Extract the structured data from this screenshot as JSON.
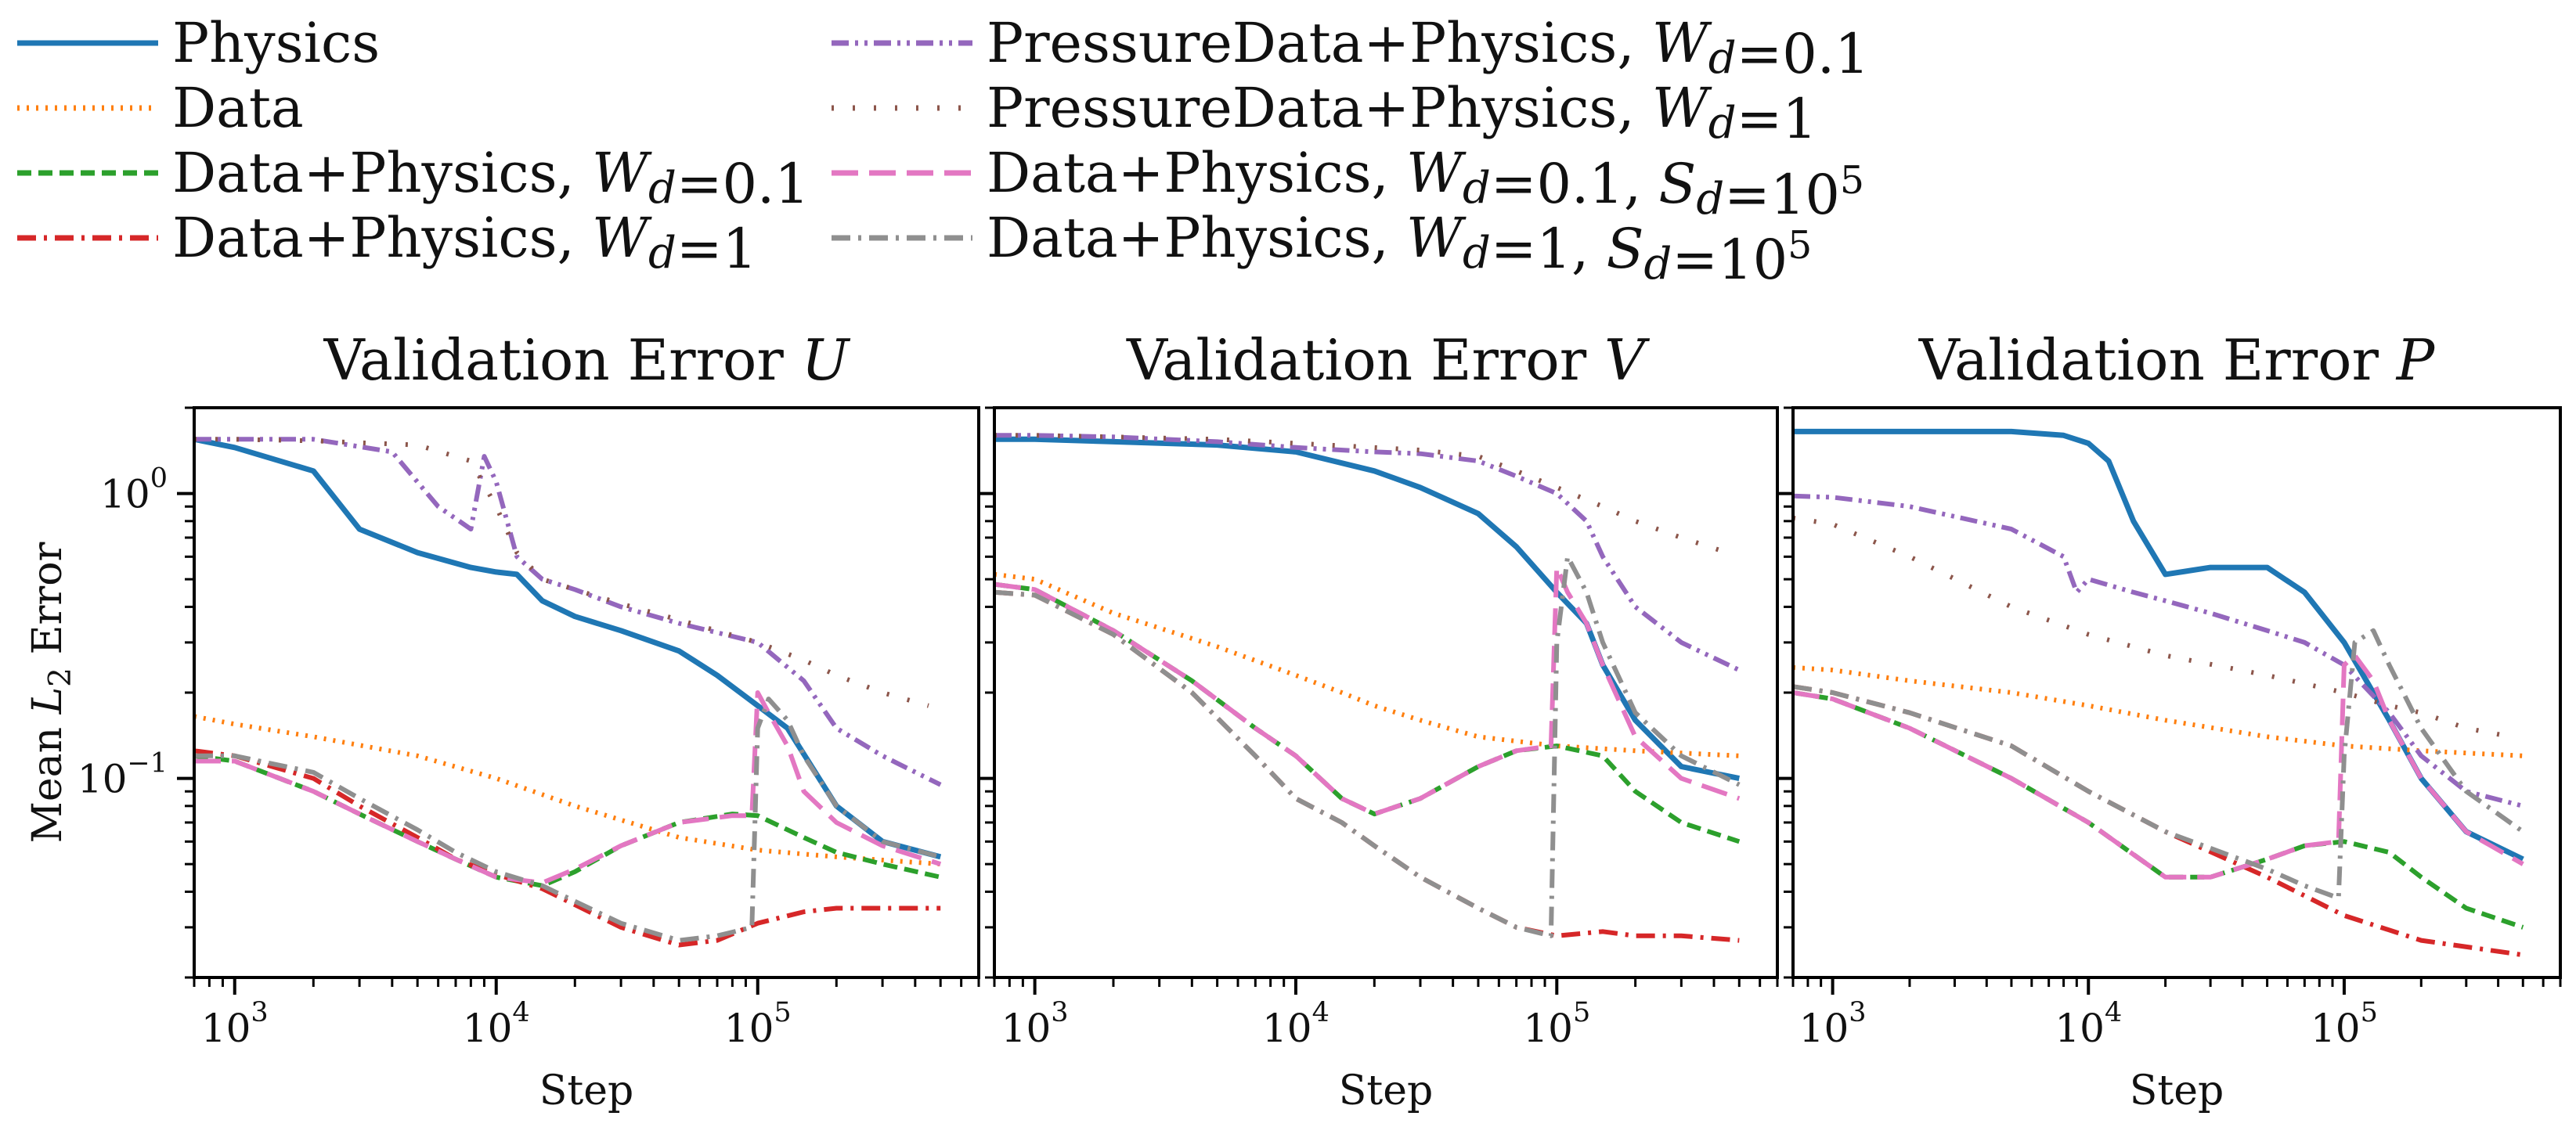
{
  "legend": [
    {
      "key": "physics",
      "label": "Physics",
      "color": "#1f77b4",
      "style": "solid"
    },
    {
      "key": "data",
      "label": "Data",
      "color": "#ff7f0e",
      "style": "dotted"
    },
    {
      "key": "dp01",
      "label": "Data+Physics, Wd=0.1",
      "color": "#2ca02c",
      "style": "dashed"
    },
    {
      "key": "dp1",
      "label": "Data+Physics, Wd=1",
      "color": "#d62728",
      "style": "dashdot"
    },
    {
      "key": "pdp01",
      "label": "PressureData+Physics, Wd=0.1",
      "color": "#9467bd",
      "style": "dashdotdot"
    },
    {
      "key": "pdp1",
      "label": "PressureData+Physics, Wd=1",
      "color": "#8c564b",
      "style": "sparse-dotted"
    },
    {
      "key": "dps01",
      "label": "Data+Physics, Wd=0.1, Sd=10^5",
      "color": "#e377c2",
      "style": "longdash"
    },
    {
      "key": "dps1",
      "label": "Data+Physics, Wd=1, Sd=10^5",
      "color": "#8f8f8f",
      "style": "dashdot"
    }
  ],
  "chart_data": [
    {
      "type": "line",
      "title": "Validation Error U",
      "xlabel": "Step",
      "ylabel": "Mean L2 Error",
      "xscale": "log",
      "yscale": "log",
      "xlim": [
        700,
        700000
      ],
      "ylim": [
        0.02,
        2.0
      ],
      "xticks": [
        "10^3",
        "10^4",
        "10^5"
      ],
      "yticks": [
        "10^0",
        "10^-1"
      ],
      "series": [
        {
          "key": "physics",
          "x": [
            700,
            1000,
            2000,
            3000,
            5000,
            8000,
            10000,
            12000,
            15000,
            20000,
            30000,
            50000,
            70000,
            100000,
            130000,
            200000,
            300000,
            500000
          ],
          "y": [
            1.55,
            1.45,
            1.2,
            0.75,
            0.62,
            0.55,
            0.53,
            0.52,
            0.42,
            0.37,
            0.33,
            0.28,
            0.23,
            0.18,
            0.15,
            0.08,
            0.06,
            0.053
          ]
        },
        {
          "key": "data",
          "x": [
            700,
            1000,
            2000,
            5000,
            10000,
            20000,
            50000,
            100000,
            200000,
            500000
          ],
          "y": [
            0.165,
            0.155,
            0.14,
            0.12,
            0.1,
            0.08,
            0.062,
            0.056,
            0.053,
            0.05
          ]
        },
        {
          "key": "dp01",
          "x": [
            700,
            1000,
            2000,
            3000,
            5000,
            7000,
            10000,
            15000,
            20000,
            30000,
            50000,
            80000,
            100000,
            150000,
            200000,
            300000,
            500000
          ],
          "y": [
            0.12,
            0.115,
            0.09,
            0.075,
            0.06,
            0.052,
            0.045,
            0.042,
            0.047,
            0.058,
            0.07,
            0.075,
            0.074,
            0.062,
            0.055,
            0.05,
            0.045
          ]
        },
        {
          "key": "dp1",
          "x": [
            700,
            1000,
            2000,
            3000,
            5000,
            7000,
            10000,
            15000,
            20000,
            30000,
            50000,
            70000,
            100000,
            150000,
            200000,
            300000,
            500000
          ],
          "y": [
            0.125,
            0.12,
            0.1,
            0.08,
            0.062,
            0.052,
            0.046,
            0.041,
            0.036,
            0.03,
            0.026,
            0.027,
            0.031,
            0.034,
            0.035,
            0.035,
            0.035
          ]
        },
        {
          "key": "pdp01",
          "x": [
            700,
            1000,
            2000,
            4000,
            6000,
            8000,
            9000,
            10000,
            12000,
            15000,
            20000,
            30000,
            50000,
            100000,
            150000,
            200000,
            300000,
            500000
          ],
          "y": [
            1.55,
            1.55,
            1.55,
            1.4,
            0.9,
            0.75,
            1.35,
            1.1,
            0.6,
            0.5,
            0.46,
            0.4,
            0.35,
            0.3,
            0.22,
            0.15,
            0.12,
            0.095
          ]
        },
        {
          "key": "pdp1",
          "x": [
            700,
            1000,
            2000,
            5000,
            8000,
            10000,
            12000,
            15000,
            20000,
            30000,
            50000,
            100000,
            150000,
            200000,
            300000,
            450000
          ],
          "y": [
            1.55,
            1.55,
            1.53,
            1.48,
            1.3,
            0.9,
            0.62,
            0.5,
            0.46,
            0.41,
            0.36,
            0.3,
            0.26,
            0.23,
            0.2,
            0.18
          ]
        },
        {
          "key": "dps01",
          "x": [
            700,
            1000,
            2000,
            3000,
            5000,
            7000,
            10000,
            15000,
            20000,
            30000,
            50000,
            80000,
            95000,
            100000,
            110000,
            130000,
            150000,
            200000,
            300000,
            500000
          ],
          "y": [
            0.115,
            0.115,
            0.09,
            0.075,
            0.06,
            0.052,
            0.045,
            0.043,
            0.048,
            0.058,
            0.07,
            0.074,
            0.074,
            0.2,
            0.17,
            0.13,
            0.09,
            0.07,
            0.058,
            0.05
          ]
        },
        {
          "key": "dps1",
          "x": [
            700,
            1000,
            2000,
            3000,
            5000,
            7000,
            10000,
            15000,
            20000,
            30000,
            50000,
            70000,
            95000,
            100000,
            110000,
            130000,
            150000,
            200000,
            300000,
            500000
          ],
          "y": [
            0.12,
            0.12,
            0.105,
            0.085,
            0.066,
            0.055,
            0.047,
            0.042,
            0.037,
            0.031,
            0.027,
            0.028,
            0.03,
            0.15,
            0.19,
            0.16,
            0.12,
            0.08,
            0.06,
            0.053
          ]
        }
      ]
    },
    {
      "type": "line",
      "title": "Validation Error V",
      "xlabel": "Step",
      "ylabel": "",
      "xscale": "log",
      "yscale": "log",
      "xlim": [
        700,
        700000
      ],
      "ylim": [
        0.02,
        2.0
      ],
      "xticks": [
        "10^3",
        "10^4",
        "10^5"
      ],
      "yticks": [],
      "series": [
        {
          "key": "physics",
          "x": [
            700,
            1000,
            2000,
            5000,
            10000,
            20000,
            30000,
            50000,
            70000,
            100000,
            130000,
            150000,
            200000,
            300000,
            500000
          ],
          "y": [
            1.55,
            1.55,
            1.52,
            1.48,
            1.4,
            1.2,
            1.05,
            0.85,
            0.65,
            0.45,
            0.35,
            0.25,
            0.16,
            0.11,
            0.1
          ]
        },
        {
          "key": "data",
          "x": [
            700,
            1000,
            2000,
            5000,
            10000,
            15000,
            20000,
            30000,
            50000,
            100000,
            200000,
            500000
          ],
          "y": [
            0.52,
            0.5,
            0.38,
            0.29,
            0.23,
            0.2,
            0.18,
            0.16,
            0.14,
            0.13,
            0.125,
            0.12
          ]
        },
        {
          "key": "dp01",
          "x": [
            700,
            1000,
            2000,
            4000,
            7000,
            10000,
            15000,
            20000,
            30000,
            50000,
            70000,
            100000,
            150000,
            200000,
            300000,
            500000
          ],
          "y": [
            0.48,
            0.46,
            0.33,
            0.22,
            0.15,
            0.12,
            0.085,
            0.075,
            0.085,
            0.11,
            0.125,
            0.13,
            0.12,
            0.09,
            0.07,
            0.06
          ]
        },
        {
          "key": "dp1",
          "x": [
            700,
            1000,
            2000,
            4000,
            7000,
            10000,
            15000,
            20000,
            30000,
            50000,
            70000,
            100000,
            150000,
            200000,
            300000,
            500000
          ],
          "y": [
            0.45,
            0.44,
            0.32,
            0.2,
            0.12,
            0.085,
            0.07,
            0.058,
            0.045,
            0.035,
            0.03,
            0.028,
            0.029,
            0.028,
            0.028,
            0.027
          ]
        },
        {
          "key": "pdp01",
          "x": [
            700,
            1000,
            2000,
            5000,
            10000,
            20000,
            30000,
            50000,
            70000,
            100000,
            130000,
            150000,
            200000,
            300000,
            500000
          ],
          "y": [
            1.6,
            1.6,
            1.58,
            1.52,
            1.45,
            1.4,
            1.38,
            1.3,
            1.15,
            1.0,
            0.8,
            0.6,
            0.4,
            0.3,
            0.24
          ]
        },
        {
          "key": "pdp1",
          "x": [
            700,
            1000,
            2000,
            5000,
            10000,
            20000,
            30000,
            50000,
            70000,
            100000,
            150000,
            200000,
            300000,
            450000
          ],
          "y": [
            1.6,
            1.6,
            1.58,
            1.55,
            1.5,
            1.45,
            1.42,
            1.35,
            1.2,
            1.05,
            0.9,
            0.8,
            0.7,
            0.62
          ]
        },
        {
          "key": "dps01",
          "x": [
            700,
            1000,
            2000,
            4000,
            7000,
            10000,
            15000,
            20000,
            30000,
            50000,
            70000,
            95000,
            100000,
            110000,
            130000,
            150000,
            200000,
            300000,
            500000
          ],
          "y": [
            0.48,
            0.46,
            0.33,
            0.22,
            0.15,
            0.12,
            0.085,
            0.075,
            0.085,
            0.11,
            0.125,
            0.13,
            0.55,
            0.45,
            0.35,
            0.25,
            0.14,
            0.1,
            0.085
          ]
        },
        {
          "key": "dps1",
          "x": [
            700,
            1000,
            2000,
            4000,
            7000,
            10000,
            15000,
            20000,
            30000,
            50000,
            70000,
            95000,
            100000,
            110000,
            130000,
            150000,
            200000,
            300000,
            500000
          ],
          "y": [
            0.45,
            0.44,
            0.32,
            0.2,
            0.12,
            0.085,
            0.07,
            0.058,
            0.045,
            0.035,
            0.03,
            0.028,
            0.3,
            0.6,
            0.45,
            0.3,
            0.17,
            0.12,
            0.095
          ]
        }
      ]
    },
    {
      "type": "line",
      "title": "Validation Error P",
      "xlabel": "Step",
      "ylabel": "",
      "xscale": "log",
      "yscale": "log",
      "xlim": [
        700,
        700000
      ],
      "ylim": [
        0.02,
        2.0
      ],
      "xticks": [
        "10^3",
        "10^4",
        "10^5"
      ],
      "yticks": [],
      "series": [
        {
          "key": "physics",
          "x": [
            700,
            1000,
            2000,
            5000,
            8000,
            10000,
            12000,
            15000,
            20000,
            30000,
            50000,
            70000,
            100000,
            150000,
            200000,
            300000,
            500000
          ],
          "y": [
            1.65,
            1.65,
            1.65,
            1.65,
            1.6,
            1.5,
            1.3,
            0.8,
            0.52,
            0.55,
            0.55,
            0.45,
            0.3,
            0.16,
            0.1,
            0.065,
            0.052
          ]
        },
        {
          "key": "data",
          "x": [
            700,
            1000,
            2000,
            5000,
            10000,
            20000,
            50000,
            100000,
            200000,
            500000
          ],
          "y": [
            0.245,
            0.24,
            0.22,
            0.2,
            0.18,
            0.16,
            0.14,
            0.13,
            0.125,
            0.12
          ]
        },
        {
          "key": "dp01",
          "x": [
            700,
            1000,
            2000,
            5000,
            10000,
            20000,
            30000,
            50000,
            70000,
            100000,
            150000,
            200000,
            300000,
            500000
          ],
          "y": [
            0.2,
            0.19,
            0.15,
            0.1,
            0.07,
            0.045,
            0.045,
            0.052,
            0.058,
            0.06,
            0.055,
            0.045,
            0.035,
            0.03
          ]
        },
        {
          "key": "dp1",
          "x": [
            700,
            1000,
            2000,
            5000,
            10000,
            20000,
            50000,
            100000,
            200000,
            500000
          ],
          "y": [
            0.21,
            0.2,
            0.17,
            0.13,
            0.09,
            0.065,
            0.045,
            0.033,
            0.027,
            0.024
          ]
        },
        {
          "key": "pdp01",
          "x": [
            700,
            1000,
            2000,
            5000,
            8000,
            9000,
            10000,
            15000,
            20000,
            30000,
            50000,
            70000,
            100000,
            150000,
            200000,
            300000,
            500000
          ],
          "y": [
            0.98,
            0.97,
            0.9,
            0.75,
            0.6,
            0.45,
            0.5,
            0.45,
            0.42,
            0.38,
            0.33,
            0.3,
            0.25,
            0.17,
            0.12,
            0.09,
            0.08
          ]
        },
        {
          "key": "pdp1",
          "x": [
            700,
            1000,
            2000,
            5000,
            10000,
            20000,
            50000,
            100000,
            150000,
            200000,
            300000,
            450000
          ],
          "y": [
            0.82,
            0.78,
            0.6,
            0.4,
            0.32,
            0.27,
            0.23,
            0.2,
            0.18,
            0.17,
            0.15,
            0.14
          ]
        },
        {
          "key": "dps01",
          "x": [
            700,
            1000,
            2000,
            5000,
            10000,
            20000,
            30000,
            50000,
            70000,
            95000,
            100000,
            110000,
            130000,
            150000,
            200000,
            300000,
            500000
          ],
          "y": [
            0.2,
            0.19,
            0.15,
            0.1,
            0.07,
            0.045,
            0.045,
            0.052,
            0.058,
            0.06,
            0.25,
            0.27,
            0.22,
            0.16,
            0.1,
            0.065,
            0.05
          ]
        },
        {
          "key": "dps1",
          "x": [
            700,
            1000,
            2000,
            5000,
            10000,
            20000,
            50000,
            70000,
            95000,
            100000,
            110000,
            130000,
            150000,
            200000,
            300000,
            500000
          ],
          "y": [
            0.21,
            0.2,
            0.17,
            0.13,
            0.09,
            0.065,
            0.048,
            0.042,
            0.038,
            0.12,
            0.3,
            0.33,
            0.25,
            0.15,
            0.09,
            0.065
          ]
        }
      ]
    }
  ]
}
